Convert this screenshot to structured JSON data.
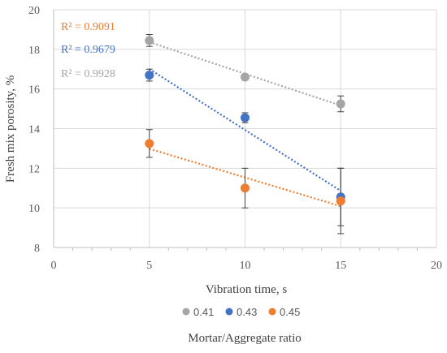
{
  "chart_data": {
    "type": "scatter",
    "xlabel": "Vibration time, s",
    "ylabel": "Fresh mix porosity, %",
    "legend_title": "Mortar/Aggregate ratio",
    "legend_placement": "bottom",
    "xlim": [
      0,
      20
    ],
    "ylim": [
      8,
      20
    ],
    "x_ticks": [
      "0",
      "5",
      "10",
      "15",
      "20"
    ],
    "y_ticks": [
      "8",
      "10",
      "12",
      "14",
      "16",
      "18",
      "20"
    ],
    "grid": true,
    "trendline": "linear, dotted",
    "series": [
      {
        "name": "0.41",
        "color": "#a5a5a5",
        "x": [
          5,
          10,
          15
        ],
        "y": [
          18.45,
          16.6,
          15.25
        ],
        "error": [
          0.3,
          0.15,
          0.4
        ],
        "r2": "R² = 0.9928"
      },
      {
        "name": "0.43",
        "color": "#4472c4",
        "x": [
          5,
          10,
          15
        ],
        "y": [
          16.7,
          14.55,
          10.55
        ],
        "error": [
          0.3,
          0.25,
          1.45
        ],
        "r2": "R² = 0.9679"
      },
      {
        "name": "0.45",
        "color": "#ed7d31",
        "x": [
          5,
          10,
          15
        ],
        "y": [
          13.25,
          11.0,
          10.35
        ],
        "error": [
          0.7,
          1.0,
          1.65
        ],
        "r2": "R² = 0.9091"
      }
    ]
  }
}
